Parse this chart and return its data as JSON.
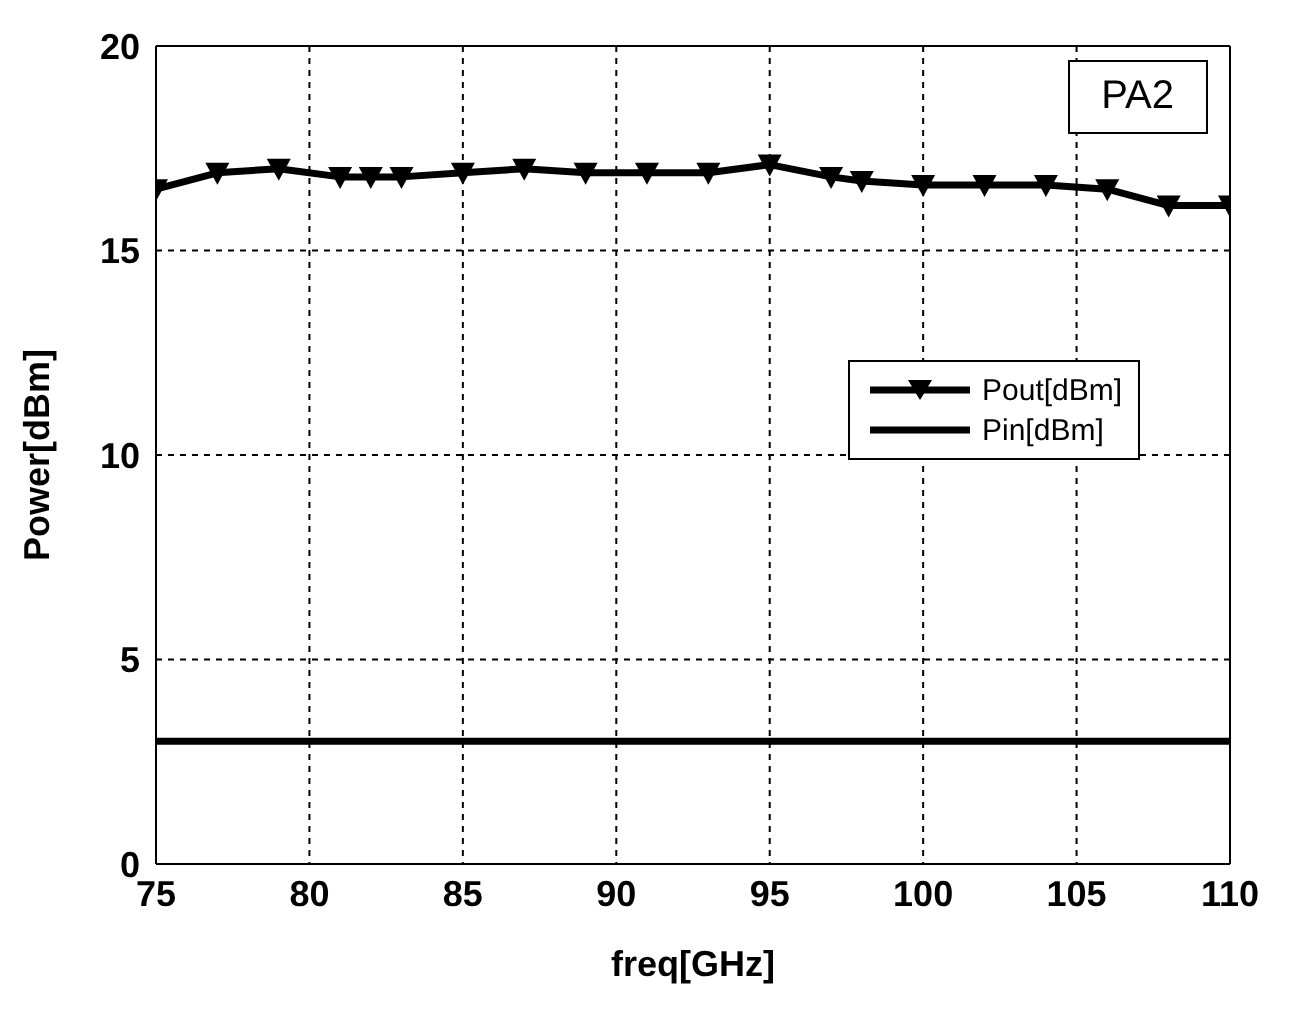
{
  "chart_data": {
    "type": "line",
    "xlabel": "freq[GHz]",
    "ylabel": "Power[dBm]",
    "annotations": [
      "PA2"
    ],
    "x": [
      75,
      77,
      79,
      81,
      82,
      83,
      85,
      87,
      89,
      91,
      93,
      95,
      97,
      98,
      100,
      102,
      104,
      106,
      108,
      110
    ],
    "series": [
      {
        "name": "Pout[dBm]",
        "color": "#000000",
        "marker": "triangle",
        "values": [
          16.5,
          16.9,
          17.0,
          16.8,
          16.8,
          16.8,
          16.9,
          17.0,
          16.9,
          16.9,
          16.9,
          17.1,
          16.8,
          16.7,
          16.6,
          16.6,
          16.6,
          16.5,
          16.1,
          16.1
        ]
      },
      {
        "name": "Pin[dBm]",
        "color": "#000000",
        "marker": "none",
        "values": [
          3,
          3,
          3,
          3,
          3,
          3,
          3,
          3,
          3,
          3,
          3,
          3,
          3,
          3,
          3,
          3,
          3,
          3,
          3,
          3
        ]
      }
    ],
    "xlim": [
      75,
      110
    ],
    "xticks": [
      75,
      80,
      85,
      90,
      95,
      100,
      105,
      110
    ],
    "ylim": [
      0,
      20
    ],
    "yticks": [
      0,
      5,
      10,
      15,
      20
    ],
    "grid": true,
    "legend": "right",
    "line_style": "solid"
  }
}
